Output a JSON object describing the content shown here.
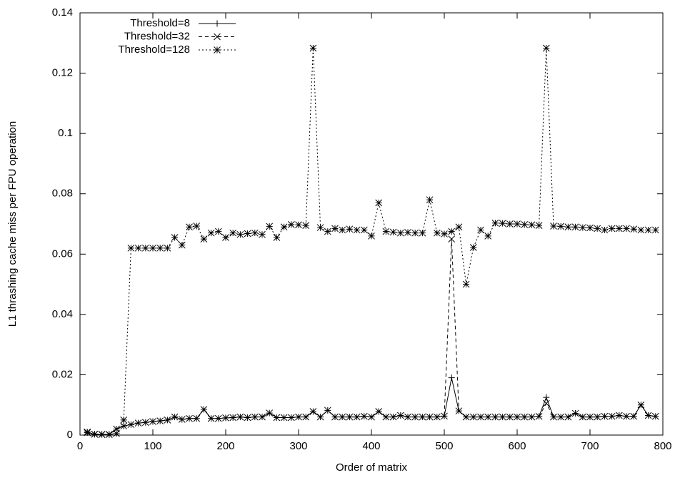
{
  "chart_data": {
    "type": "line",
    "xlabel": "Order of matrix",
    "ylabel": "L1 thrashing cache miss per FPU operation",
    "x": [
      10,
      20,
      30,
      40,
      50,
      60,
      70,
      80,
      90,
      100,
      110,
      120,
      130,
      140,
      150,
      160,
      170,
      180,
      190,
      200,
      210,
      220,
      230,
      240,
      250,
      260,
      270,
      280,
      290,
      300,
      310,
      320,
      330,
      340,
      350,
      360,
      370,
      380,
      390,
      400,
      410,
      420,
      430,
      440,
      450,
      460,
      470,
      480,
      490,
      500,
      510,
      520,
      530,
      540,
      550,
      560,
      570,
      580,
      590,
      600,
      610,
      620,
      630,
      640,
      650,
      660,
      670,
      680,
      690,
      700,
      710,
      720,
      730,
      740,
      750,
      760,
      770,
      780,
      790
    ],
    "series": [
      {
        "name": "Threshold=8",
        "color": "#000000",
        "dash": "solid",
        "marker": "plus",
        "values": [
          0.0008,
          0.0003,
          0.0002,
          0.0002,
          0.002,
          0.003,
          0.0035,
          0.004,
          0.0042,
          0.0045,
          0.0047,
          0.005,
          0.006,
          0.0052,
          0.0055,
          0.0055,
          0.0085,
          0.0055,
          0.0055,
          0.0057,
          0.0058,
          0.006,
          0.0058,
          0.006,
          0.006,
          0.0073,
          0.0058,
          0.0058,
          0.0058,
          0.006,
          0.006,
          0.0078,
          0.006,
          0.0082,
          0.006,
          0.006,
          0.006,
          0.006,
          0.0062,
          0.006,
          0.0078,
          0.006,
          0.006,
          0.0065,
          0.006,
          0.006,
          0.006,
          0.006,
          0.006,
          0.0063,
          0.019,
          0.008,
          0.006,
          0.006,
          0.006,
          0.006,
          0.006,
          0.006,
          0.006,
          0.006,
          0.006,
          0.006,
          0.0062,
          0.0125,
          0.006,
          0.006,
          0.006,
          0.0072,
          0.006,
          0.006,
          0.006,
          0.0062,
          0.0062,
          0.0065,
          0.0062,
          0.0062,
          0.01,
          0.0065,
          0.0062
        ]
      },
      {
        "name": "Threshold=32",
        "color": "#000000",
        "dash": "dashed",
        "marker": "cross",
        "values": [
          0.0008,
          0.0003,
          0.0002,
          0.0002,
          0.002,
          0.003,
          0.0035,
          0.004,
          0.0042,
          0.0045,
          0.0047,
          0.005,
          0.006,
          0.0052,
          0.0055,
          0.0055,
          0.0085,
          0.0055,
          0.0055,
          0.0057,
          0.0058,
          0.006,
          0.0058,
          0.006,
          0.006,
          0.0073,
          0.0058,
          0.0058,
          0.0058,
          0.006,
          0.006,
          0.0078,
          0.006,
          0.0082,
          0.006,
          0.006,
          0.006,
          0.006,
          0.0062,
          0.006,
          0.0078,
          0.006,
          0.006,
          0.0065,
          0.006,
          0.006,
          0.006,
          0.006,
          0.006,
          0.0063,
          0.065,
          0.008,
          0.006,
          0.006,
          0.006,
          0.006,
          0.006,
          0.006,
          0.006,
          0.006,
          0.006,
          0.006,
          0.0062,
          0.0105,
          0.006,
          0.006,
          0.006,
          0.0072,
          0.006,
          0.006,
          0.006,
          0.0062,
          0.0062,
          0.0065,
          0.0062,
          0.0062,
          0.01,
          0.0065,
          0.0062
        ]
      },
      {
        "name": "Threshold=128",
        "color": "#000000",
        "dash": "dotted",
        "marker": "star",
        "values": [
          0.001,
          0.0003,
          0.0002,
          0.0002,
          0.0005,
          0.005,
          0.062,
          0.062,
          0.062,
          0.062,
          0.062,
          0.062,
          0.0655,
          0.063,
          0.069,
          0.0693,
          0.065,
          0.067,
          0.0675,
          0.0655,
          0.067,
          0.0665,
          0.0668,
          0.067,
          0.0665,
          0.0692,
          0.0655,
          0.069,
          0.0698,
          0.0697,
          0.0695,
          0.1283,
          0.0688,
          0.0675,
          0.0685,
          0.068,
          0.0683,
          0.068,
          0.068,
          0.066,
          0.077,
          0.0675,
          0.0673,
          0.067,
          0.0672,
          0.067,
          0.067,
          0.078,
          0.067,
          0.0667,
          0.0675,
          0.069,
          0.05,
          0.0622,
          0.068,
          0.066,
          0.0703,
          0.0702,
          0.07,
          0.07,
          0.0698,
          0.0697,
          0.0695,
          0.1283,
          0.0693,
          0.0692,
          0.069,
          0.069,
          0.0688,
          0.0687,
          0.0685,
          0.068,
          0.0685,
          0.0685,
          0.0685,
          0.0683,
          0.068,
          0.068,
          0.068
        ]
      }
    ],
    "xlim": [
      0,
      800
    ],
    "xticks": [
      0,
      100,
      200,
      300,
      400,
      500,
      600,
      700,
      800
    ],
    "ylim": [
      0,
      0.14
    ],
    "yticks": [
      0,
      0.02,
      0.04,
      0.06,
      0.08,
      0.1,
      0.12,
      0.14
    ],
    "legend": "top-left",
    "grid": false
  }
}
